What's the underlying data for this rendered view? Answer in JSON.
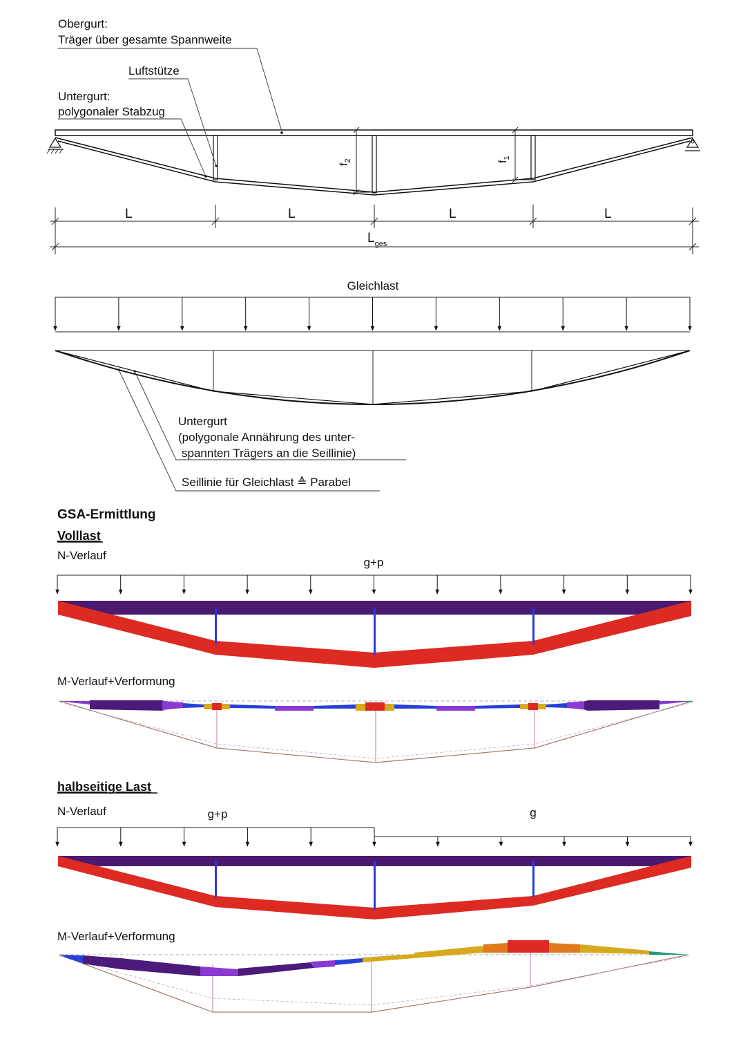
{
  "colors": {
    "tension": "#dd2a22",
    "compression_chord": "#4a1a70",
    "strut": "#2a3ad8",
    "moment_purple": "#4b1a7a",
    "moment_violet": "#8a3ad0",
    "moment_blue": "#2740d8",
    "moment_orange": "#e07a1c",
    "moment_yellow": "#d6a91e",
    "moment_red": "#dd2a22",
    "deformation": "#a07a6a"
  },
  "structure": {
    "label_obergurt": "Obergurt:",
    "label_obergurt_desc": "Träger über gesamte Spannweite",
    "label_luftstuetze": "Luftstütze",
    "label_untergurt": "Untergurt:",
    "label_untergurt_desc": "polygonaler Stabzug",
    "label_f1": "f",
    "label_f1_sub": "1",
    "label_f2": "f",
    "label_f2_sub": "2",
    "dims": [
      "L",
      "L",
      "L",
      "L"
    ],
    "dim_total": "L",
    "dim_total_sub": "ges"
  },
  "gleichlast": {
    "title": "Gleichlast",
    "label_untergurt_1": "Untergurt",
    "label_untergurt_2": "(polygonale Annährung des unter-",
    "label_untergurt_3": "spannten Trägers an die Seillinie)",
    "label_seillinie": "Seillinie für Gleichlast ≙ Parabel"
  },
  "gsa": {
    "title": "GSA-Ermittlung",
    "volllast": {
      "title": "Volllast",
      "n_label": "N-Verlauf",
      "load_label": "g+p",
      "m_label": "M-Verlauf+Verformung"
    },
    "halbseitig": {
      "title": "halbseitige Last",
      "n_label": "N-Verlauf",
      "load_label_left": "g+p",
      "load_label_right": "g",
      "m_label": "M-Verlauf+Verformung"
    }
  }
}
